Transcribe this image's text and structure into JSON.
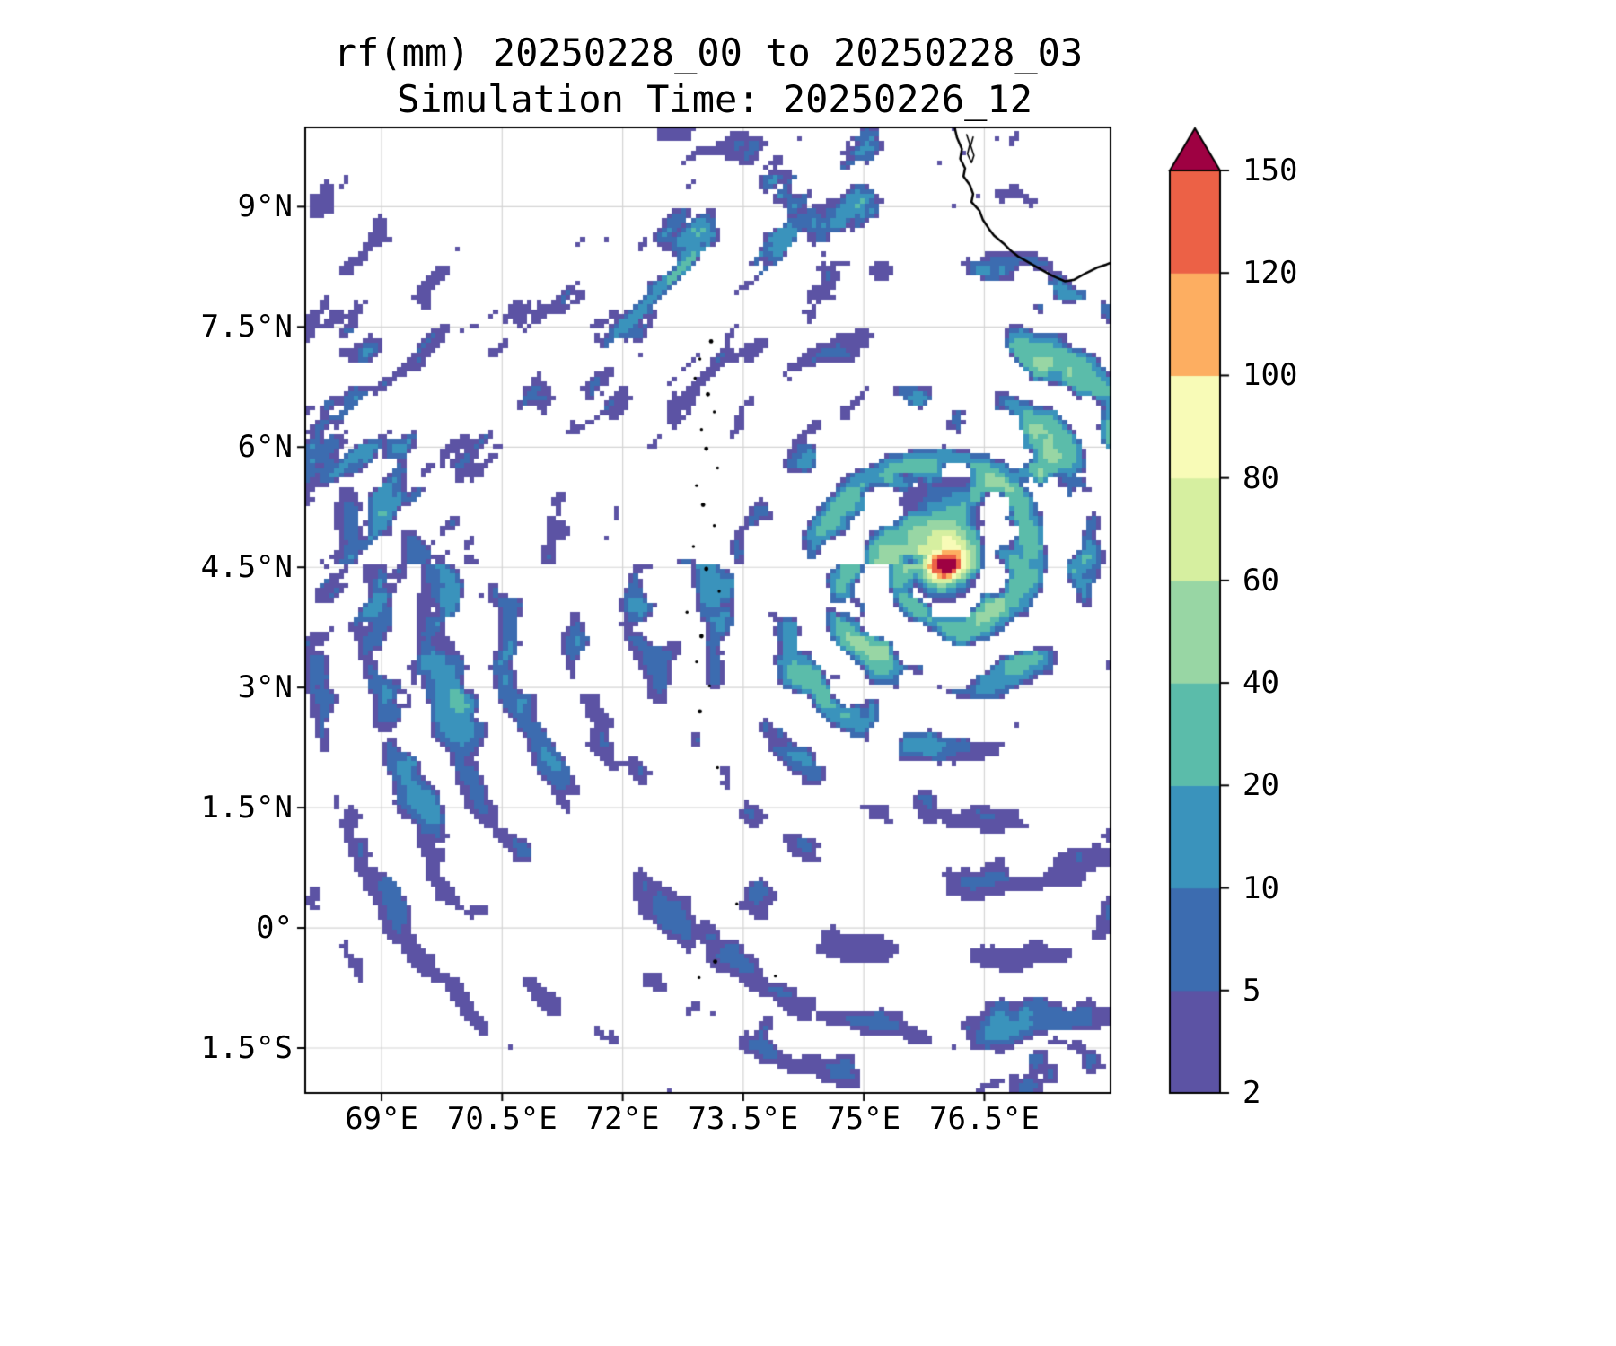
{
  "title": {
    "line1": "rf(mm) 20250228_00 to 20250228_03",
    "line2": "Simulation Time: 20250226_12"
  },
  "chart_data": {
    "type": "heatmap",
    "title": "rf(mm) 20250228_00 to 20250228_03",
    "subtitle": "Simulation Time: 20250226_12",
    "variable": "rf (accumulated rainfall, mm)",
    "valid_period": {
      "start": "20250228_00",
      "end": "20250228_03"
    },
    "simulation_time": "20250226_12",
    "xlabel": "",
    "ylabel": "",
    "x_ticks": [
      {
        "value": 69.0,
        "label": "69°E"
      },
      {
        "value": 70.5,
        "label": "70.5°E"
      },
      {
        "value": 72.0,
        "label": "72°E"
      },
      {
        "value": 73.5,
        "label": "73.5°E"
      },
      {
        "value": 75.0,
        "label": "75°E"
      },
      {
        "value": 76.5,
        "label": "76.5°E"
      }
    ],
    "y_ticks": [
      {
        "value": 9.0,
        "label": "9°N"
      },
      {
        "value": 7.5,
        "label": "7.5°N"
      },
      {
        "value": 6.0,
        "label": "6°N"
      },
      {
        "value": 4.5,
        "label": "4.5°N"
      },
      {
        "value": 3.0,
        "label": "3°N"
      },
      {
        "value": 1.5,
        "label": "1.5°N"
      },
      {
        "value": 0.0,
        "label": "0°"
      },
      {
        "value": -1.5,
        "label": "1.5°S"
      }
    ],
    "lon_range": [
      68.05,
      78.07
    ],
    "lat_range": [
      -2.06,
      9.99
    ],
    "grid": true,
    "grid_color": "#d4d4d4",
    "colorbar": {
      "orientation": "vertical",
      "levels": [
        2,
        5,
        10,
        20,
        40,
        60,
        80,
        100,
        120,
        150
      ],
      "band_colors": [
        "#5c53a4",
        "#3c6cb0",
        "#3a93bc",
        "#5bbcaa",
        "#98d6a4",
        "#d6efa0",
        "#f8fbb7",
        "#fdae61",
        "#ec6146"
      ],
      "extend_max_color": "#9e0142",
      "units": "mm"
    },
    "features": {
      "description": "Widespread scattered light rain bands (2-20 mm) arranged in arcs over the ocean; organized convective region of 20-80 mm between 73E-78E and 2N-7N; intense localized cell exceeding 150 mm near 76E, 4.5N.",
      "max_cell": {
        "lon": 75.98,
        "lat": 4.53,
        "value_mm": ">150"
      },
      "coastline": "southwest coast of India (top right)",
      "island_chain_dotted": "Lakshadweep-Maldives atolls near 73°E"
    },
    "render_params": {
      "cell_deg": 0.06,
      "seeds": {
        "n1": 3,
        "n2": 11,
        "streak": 17
      },
      "storm_center": [
        75.98,
        4.53
      ],
      "hotspot": {
        "amp": 175,
        "sigma": 0.155
      },
      "arc_wavenumber": 7.5,
      "coastline": [
        [
          76.13,
          9.99
        ],
        [
          76.16,
          9.86
        ],
        [
          76.22,
          9.72
        ],
        [
          76.2,
          9.6
        ],
        [
          76.26,
          9.48
        ],
        [
          76.24,
          9.38
        ],
        [
          76.32,
          9.27
        ],
        [
          76.36,
          9.16
        ],
        [
          76.34,
          9.06
        ],
        [
          76.44,
          8.95
        ],
        [
          76.48,
          8.84
        ],
        [
          76.56,
          8.72
        ],
        [
          76.62,
          8.64
        ],
        [
          76.74,
          8.54
        ],
        [
          76.82,
          8.46
        ],
        [
          76.92,
          8.38
        ],
        [
          77.06,
          8.3
        ],
        [
          77.2,
          8.22
        ],
        [
          77.34,
          8.14
        ],
        [
          77.5,
          8.07
        ],
        [
          77.62,
          8.09
        ],
        [
          77.76,
          8.17
        ],
        [
          77.9,
          8.24
        ],
        [
          78.02,
          8.28
        ],
        [
          78.12,
          8.32
        ]
      ],
      "lake": [
        [
          76.28,
          9.9
        ],
        [
          76.32,
          9.78
        ],
        [
          76.29,
          9.66
        ],
        [
          76.34,
          9.55
        ],
        [
          76.37,
          9.64
        ],
        [
          76.33,
          9.76
        ],
        [
          76.36,
          9.87
        ]
      ],
      "islands": [
        [
          73.1,
          7.32
        ],
        [
          72.96,
          7.1
        ],
        [
          72.9,
          6.86
        ],
        [
          73.06,
          6.66
        ],
        [
          73.14,
          6.44
        ],
        [
          72.98,
          6.22
        ],
        [
          73.04,
          5.98
        ],
        [
          73.18,
          5.74
        ],
        [
          72.92,
          5.52
        ],
        [
          73.0,
          5.28
        ],
        [
          73.14,
          5.02
        ],
        [
          72.88,
          4.76
        ],
        [
          73.04,
          4.48
        ],
        [
          73.2,
          4.2
        ],
        [
          72.8,
          3.94
        ],
        [
          72.98,
          3.64
        ],
        [
          72.92,
          3.32
        ],
        [
          73.08,
          3.02
        ],
        [
          72.96,
          2.7
        ],
        [
          73.18,
          2.0
        ],
        [
          73.42,
          0.3
        ],
        [
          73.15,
          -0.42
        ],
        [
          72.95,
          -0.62
        ],
        [
          73.9,
          -0.6
        ]
      ]
    }
  }
}
